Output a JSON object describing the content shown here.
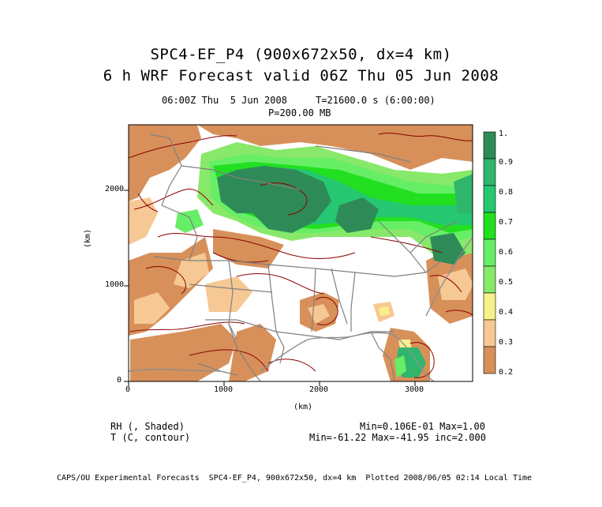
{
  "title": {
    "line1": "SPC4-EF_P4 (900x672x50, dx=4 km)",
    "line2": "6 h WRF Forecast valid 06Z Thu 05 Jun 2008"
  },
  "subtitle": {
    "time": "06:00Z Thu  5 Jun 2008     T=21600.0 s (6:00:00)",
    "level": "P=200.00 MB"
  },
  "axes": {
    "x_unit": "(km)",
    "y_unit": "(km)",
    "x_ticks": [
      "0",
      "1000",
      "2000",
      "3000"
    ],
    "y_ticks": [
      "0",
      "1000",
      "2000"
    ]
  },
  "colorbar": {
    "labels": [
      "1.",
      "0.9",
      "0.8",
      "0.7",
      "0.6",
      "0.5",
      "0.4",
      "0.3",
      "0.2"
    ],
    "colors": [
      "#2e8b57",
      "#2fb66c",
      "#25c870",
      "#22e01f",
      "#66ee66",
      "#88e86a",
      "#f8f08a",
      "#f6c894",
      "#d7905a",
      "#b07a4a"
    ]
  },
  "legend": {
    "rh": "RH (, Shaded)",
    "t": "T (C, contour)",
    "rh_stats": "Min=0.106E-01 Max=1.00",
    "t_stats": "Min=-61.22 Max=-41.95 inc=2.000"
  },
  "footer": "CAPS/OU Experimental Forecasts  SPC4-EF_P4, 900x672x50, dx=4 km  Plotted 2008/06/05 02:14 Local Time",
  "colors": {
    "contour": "#8b0000",
    "boundary": "#808080",
    "frame": "#000000"
  }
}
